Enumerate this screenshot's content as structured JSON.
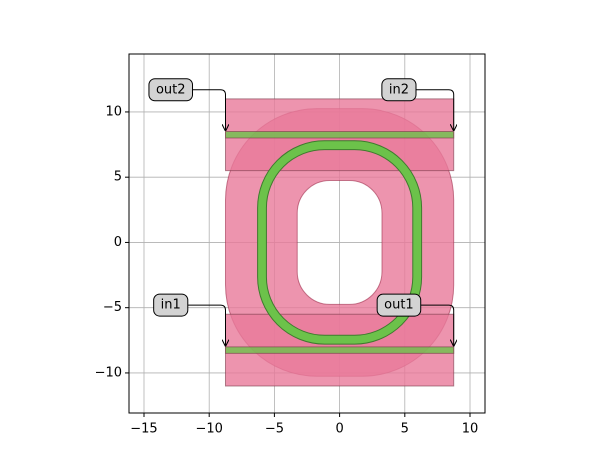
{
  "chart_data": {
    "type": "layout",
    "xlim": [
      -16.15,
      11.15
    ],
    "ylim": [
      -13.07,
      14.44
    ],
    "xticks": [
      {
        "value": -15,
        "label": "−15"
      },
      {
        "value": -10,
        "label": "−10"
      },
      {
        "value": -5,
        "label": "−5"
      },
      0,
      5,
      10
    ],
    "yticks": [
      {
        "value": -10,
        "label": "−10"
      },
      {
        "value": -5,
        "label": "−5"
      },
      0,
      5,
      10
    ],
    "grid": true,
    "shapes": [
      {
        "kind": "clad",
        "x": [
          -8.75,
          8.75
        ],
        "y": [
          -10.25,
          10.25
        ],
        "radius": 7,
        "hole_x": [
          -3.25,
          3.25
        ],
        "hole_y": [
          -4.75,
          4.75
        ],
        "hole_radius": 2.5,
        "color": "#e8799a"
      },
      {
        "kind": "rect",
        "x": [
          -8.75,
          8.75
        ],
        "y": [
          5.5,
          11
        ],
        "color": "#e8799a"
      },
      {
        "kind": "rect",
        "x": [
          -8.75,
          8.75
        ],
        "y": [
          -11,
          -5.5
        ],
        "color": "#e8799a"
      },
      {
        "kind": "ring",
        "x": [
          -5.95,
          5.95
        ],
        "y": [
          -7.45,
          7.45
        ],
        "radius": 4.8,
        "width": 0.6,
        "color": "#6cc24a"
      },
      {
        "kind": "rect",
        "x": [
          -8.75,
          8.75
        ],
        "y": [
          8.0,
          8.5
        ],
        "color": "#6cc24a"
      },
      {
        "kind": "rect",
        "x": [
          -8.75,
          8.75
        ],
        "y": [
          -8.5,
          -8.0
        ],
        "color": "#6cc24a"
      }
    ],
    "ports": [
      {
        "name": "out2",
        "x": -8.75,
        "y": 8.5
      },
      {
        "name": "in2",
        "x": 8.75,
        "y": 8.5
      },
      {
        "name": "in1",
        "x": -8.75,
        "y": -8.0
      },
      {
        "name": "out1",
        "x": 8.75,
        "y": -8.0
      }
    ]
  }
}
